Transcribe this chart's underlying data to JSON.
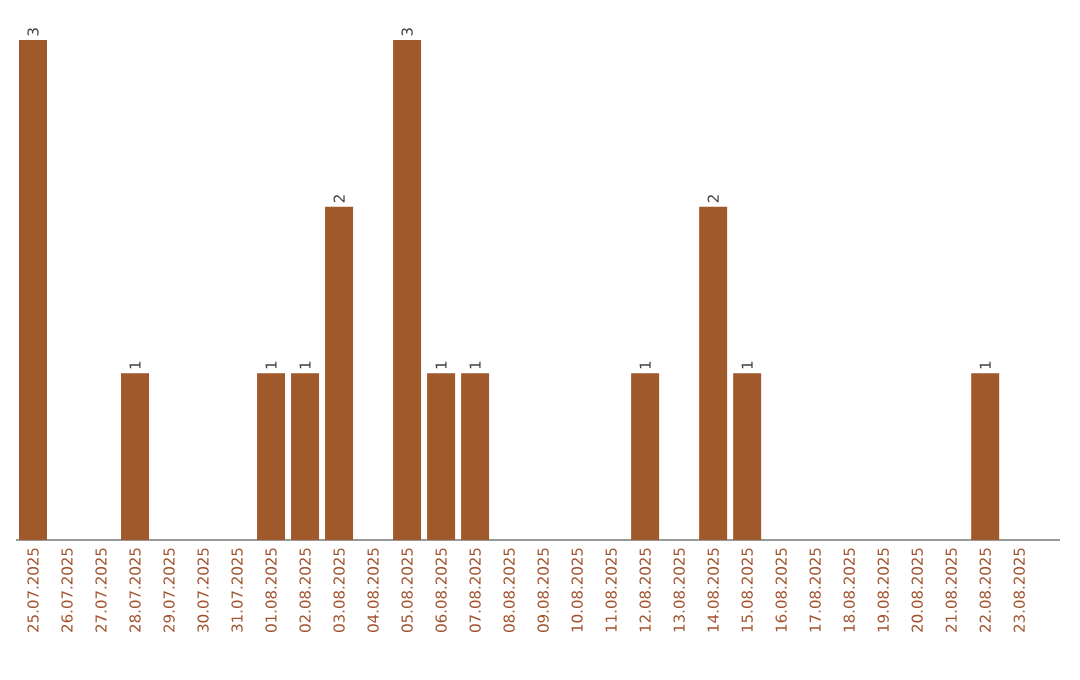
{
  "chart_data": {
    "type": "bar",
    "categories": [
      "25.07.2025",
      "26.07.2025",
      "27.07.2025",
      "28.07.2025",
      "29.07.2025",
      "30.07.2025",
      "31.07.2025",
      "01.08.2025",
      "02.08.2025",
      "03.08.2025",
      "04.08.2025",
      "05.08.2025",
      "06.08.2025",
      "07.08.2025",
      "08.08.2025",
      "09.08.2025",
      "10.08.2025",
      "11.08.2025",
      "12.08.2025",
      "13.08.2025",
      "14.08.2025",
      "15.08.2025",
      "16.08.2025",
      "17.08.2025",
      "18.08.2025",
      "19.08.2025",
      "20.08.2025",
      "21.08.2025",
      "22.08.2025",
      "23.08.2025"
    ],
    "values": [
      3,
      0,
      0,
      1,
      0,
      0,
      0,
      1,
      1,
      2,
      0,
      3,
      1,
      1,
      0,
      0,
      0,
      0,
      1,
      0,
      2,
      1,
      0,
      0,
      0,
      0,
      0,
      0,
      1,
      0
    ],
    "value_labels": [
      "3",
      null,
      null,
      "1",
      null,
      null,
      null,
      "1",
      "1",
      "2",
      null,
      "3",
      "1",
      "1",
      null,
      null,
      null,
      null,
      "1",
      null,
      "2",
      "1",
      null,
      null,
      null,
      null,
      null,
      null,
      "1",
      null
    ],
    "color": "#a0592a"
  }
}
